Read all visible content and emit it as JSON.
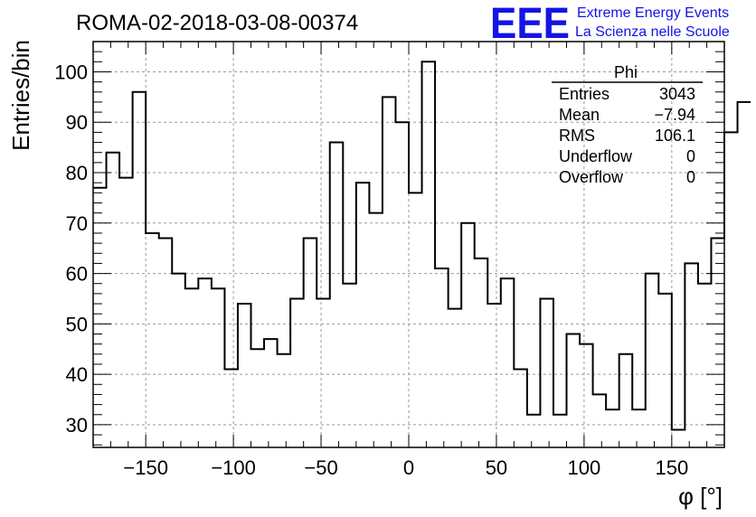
{
  "title": "ROMA-02-2018-03-08-00374",
  "logo": {
    "mark": "EEE",
    "line1": "Extreme Energy Events",
    "line2": "La Scienza nelle Scuole",
    "color": "#1414e6"
  },
  "stats": {
    "name": "Phi",
    "rows": [
      {
        "label": "Entries",
        "value": "3043"
      },
      {
        "label": "Mean",
        "value": "−7.94"
      },
      {
        "label": "RMS",
        "value": "106.1"
      },
      {
        "label": "Underflow",
        "value": "0"
      },
      {
        "label": "Overflow",
        "value": "0"
      }
    ]
  },
  "chart_data": {
    "type": "histogram",
    "xlabel": "φ [°]",
    "ylabel": "Entries/bin",
    "xlim": [
      -180,
      180
    ],
    "ylim": [
      25.5,
      106
    ],
    "grid": true,
    "line_color": "#000000",
    "x_ticks": [
      -150,
      -100,
      -50,
      0,
      50,
      100,
      150
    ],
    "x_tick_labels": [
      "−150",
      "−100",
      "−50",
      "0",
      "50",
      "100",
      "150"
    ],
    "y_ticks": [
      30,
      40,
      50,
      60,
      70,
      80,
      90,
      100
    ],
    "y_tick_labels": [
      "30",
      "40",
      "50",
      "60",
      "70",
      "80",
      "90",
      "100"
    ],
    "bin_edges_start": -180,
    "bin_width": 7.5,
    "values": [
      77,
      84,
      79,
      96,
      68,
      67,
      60,
      57,
      59,
      57,
      41,
      54,
      45,
      47,
      44,
      55,
      67,
      55,
      86,
      58,
      78,
      72,
      95,
      90,
      76,
      102,
      61,
      53,
      70,
      63,
      54,
      59,
      41,
      32,
      55,
      32,
      48,
      46,
      36,
      33,
      44,
      33,
      60,
      56,
      29,
      62,
      58,
      67,
      88,
      94
    ]
  }
}
